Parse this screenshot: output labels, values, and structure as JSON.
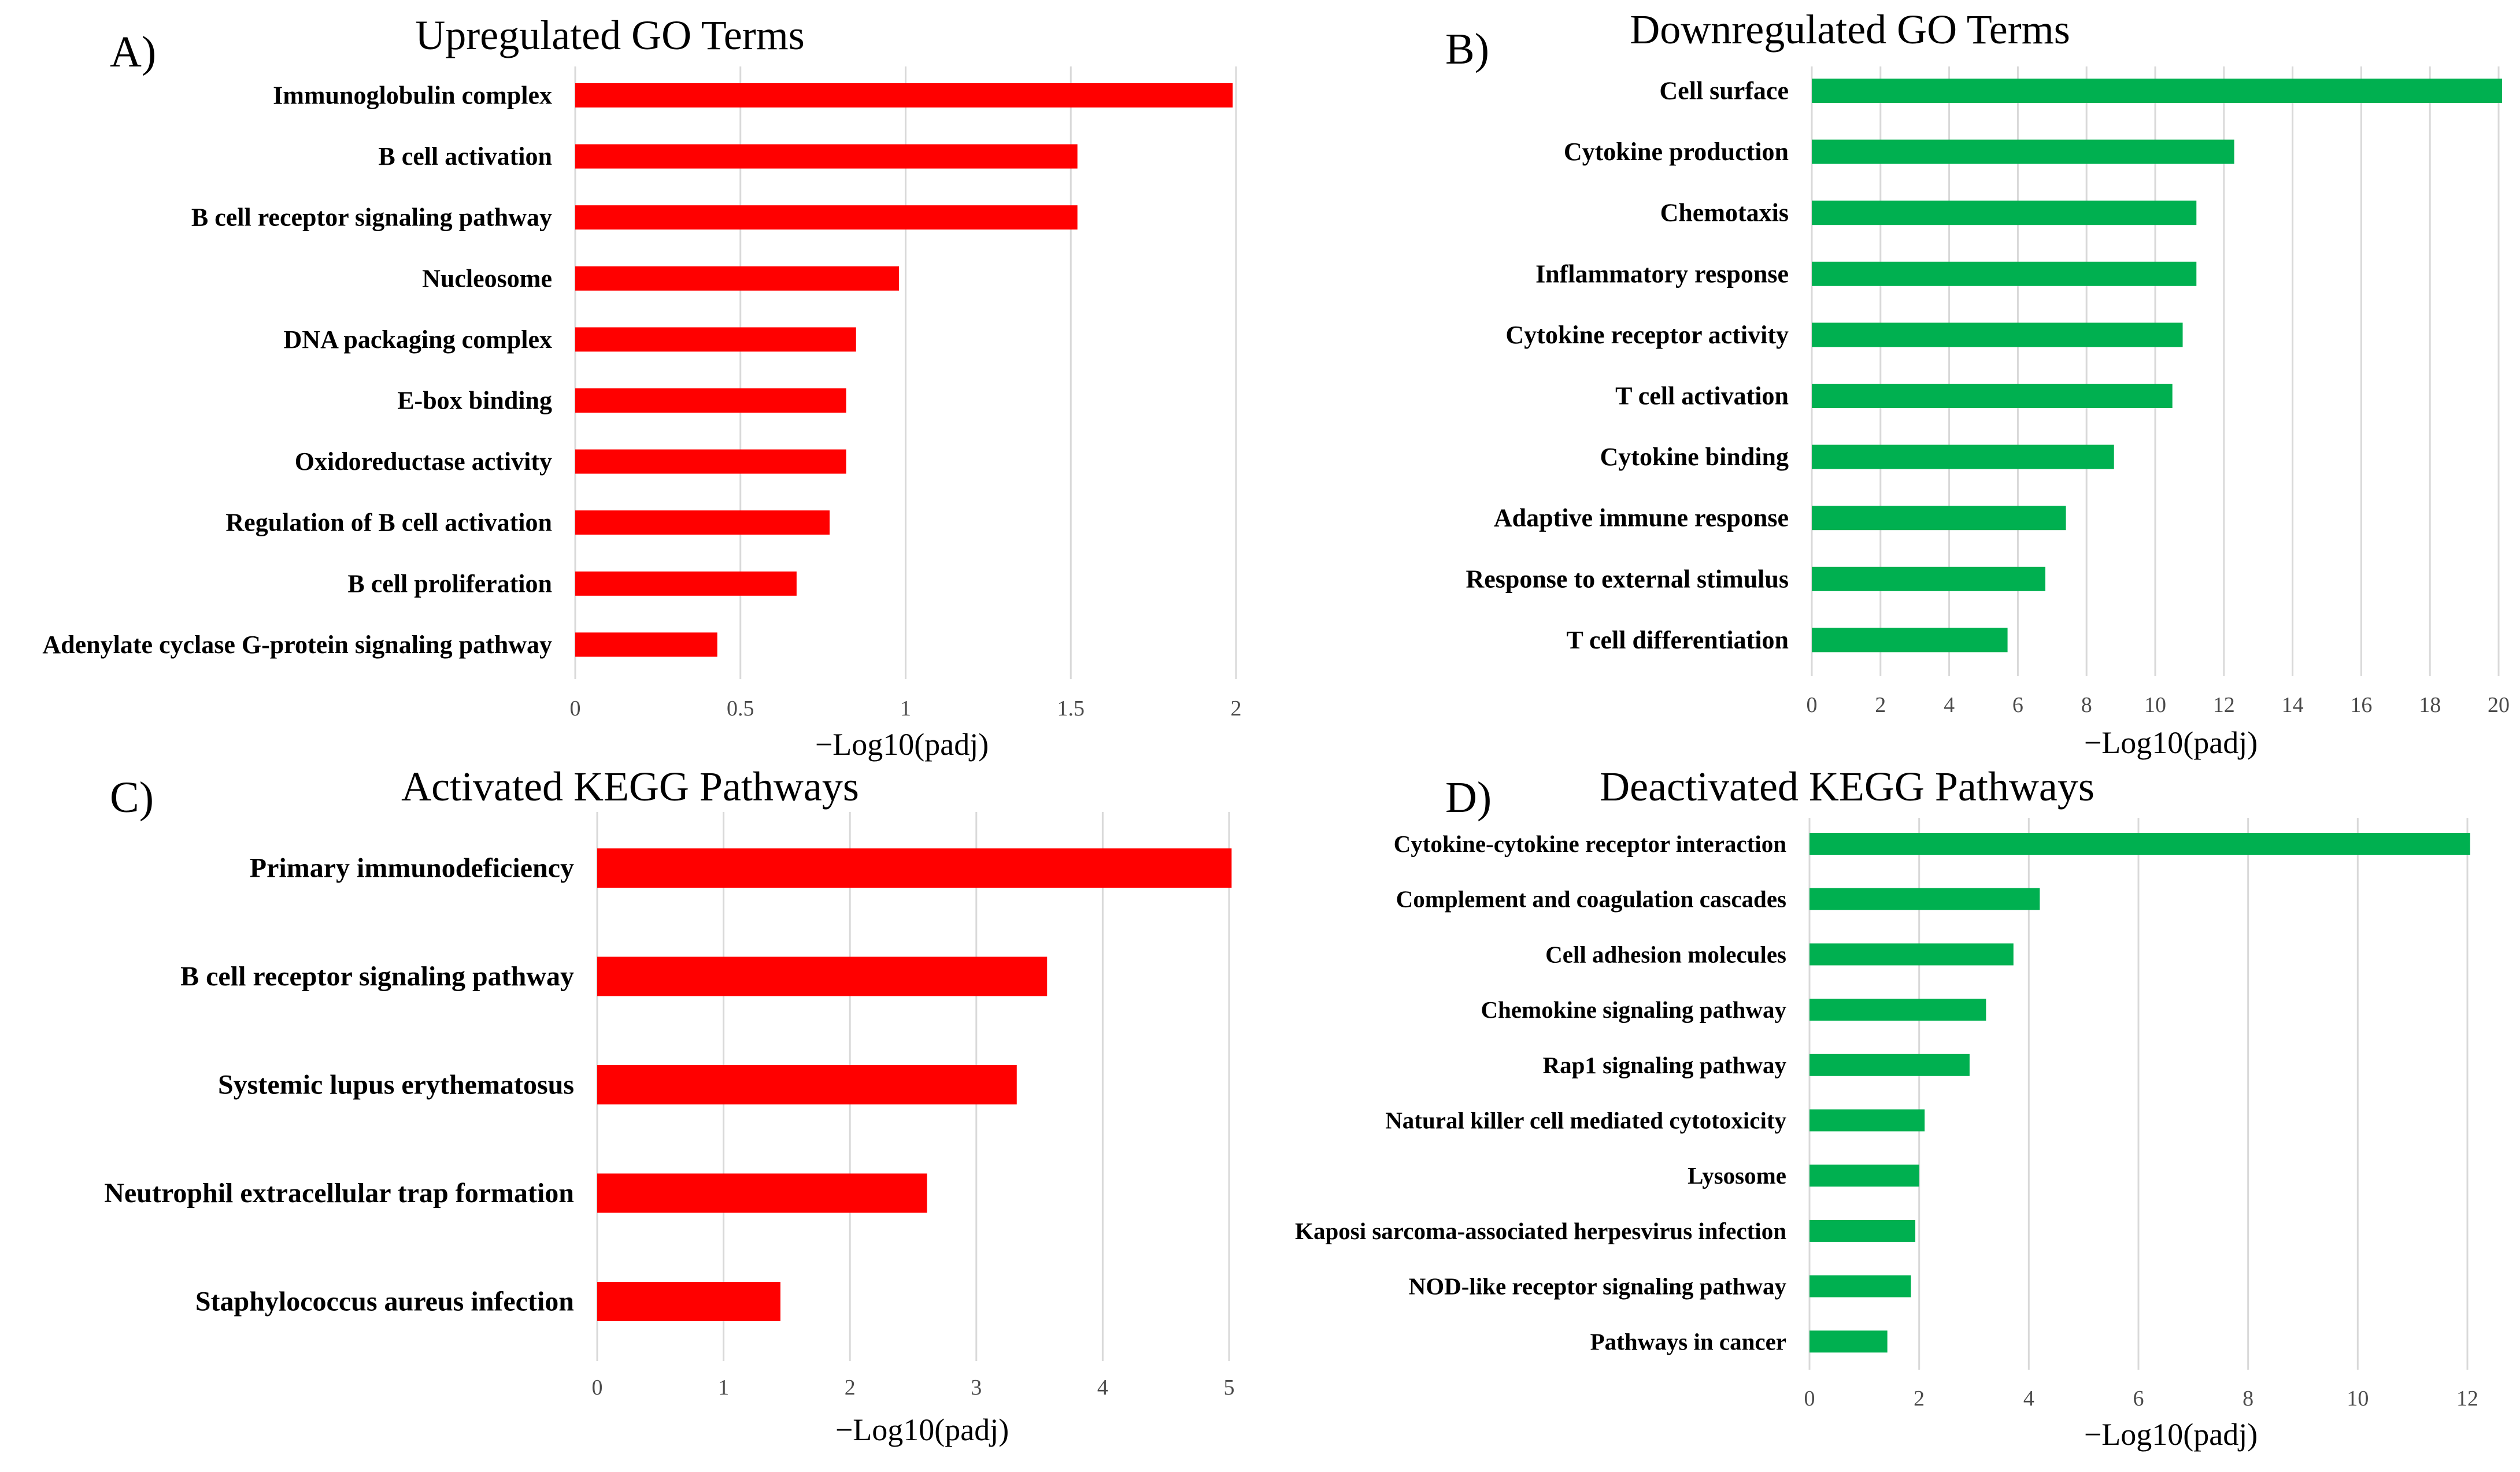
{
  "chart_data": [
    {
      "type": "bar",
      "orientation": "horizontal",
      "panel_label": "A)",
      "title": "Upregulated GO Terms",
      "xlabel": "−Log10(padj)",
      "ylabel": "",
      "xlim": [
        0,
        2
      ],
      "ticks": [
        0,
        0.5,
        1,
        1.5,
        2
      ],
      "tick_labels": [
        "0",
        "0.5",
        "1",
        "1.5",
        "2"
      ],
      "grid": true,
      "color": "#ff0000",
      "categories": [
        "Immunoglobulin complex",
        "B cell activation",
        "B cell receptor signaling pathway",
        "Nucleosome",
        "DNA packaging complex",
        "E-box binding",
        "Oxidoreductase activity",
        "Regulation of B cell activation",
        "B cell proliferation",
        "Adenylate cyclase G-protein signaling pathway"
      ],
      "values": [
        1.99,
        1.52,
        1.52,
        0.98,
        0.85,
        0.82,
        0.82,
        0.77,
        0.67,
        0.43
      ]
    },
    {
      "type": "bar",
      "orientation": "horizontal",
      "panel_label": "B)",
      "title": "Downregulated GO Terms",
      "xlabel": "−Log10(padj)",
      "ylabel": "",
      "xlim": [
        0,
        20
      ],
      "ticks": [
        0,
        2,
        4,
        6,
        8,
        10,
        12,
        14,
        16,
        18,
        20
      ],
      "tick_labels": [
        "0",
        "2",
        "4",
        "6",
        "8",
        "10",
        "12",
        "14",
        "16",
        "18",
        "20"
      ],
      "grid": true,
      "color": "#00b050",
      "categories": [
        "Cell surface",
        "Cytokine production",
        "Chemotaxis",
        "Inflammatory response",
        "Cytokine receptor activity",
        "T cell activation",
        "Cytokine binding",
        "Adaptive immune response",
        "Response to external stimulus",
        "T cell differentiation"
      ],
      "values": [
        20.1,
        12.3,
        11.2,
        11.2,
        10.8,
        10.5,
        8.8,
        7.4,
        6.8,
        5.7
      ]
    },
    {
      "type": "bar",
      "orientation": "horizontal",
      "panel_label": "C)",
      "title": "Activated KEGG Pathways",
      "xlabel": "−Log10(padj)",
      "ylabel": "",
      "xlim": [
        0,
        5
      ],
      "ticks": [
        0,
        1,
        2,
        3,
        4,
        5
      ],
      "tick_labels": [
        "0",
        "1",
        "2",
        "3",
        "4",
        "5"
      ],
      "grid": true,
      "color": "#ff0000",
      "categories": [
        "Primary immunodeficiency",
        "B cell receptor signaling pathway",
        "Systemic lupus erythematosus",
        "Neutrophil extracellular trap formation",
        "Staphylococcus aureus infection"
      ],
      "values": [
        5.02,
        3.56,
        3.32,
        2.61,
        1.45
      ]
    },
    {
      "type": "bar",
      "orientation": "horizontal",
      "panel_label": "D)",
      "title": "Deactivated KEGG Pathways",
      "xlabel": "−Log10(padj)",
      "ylabel": "",
      "xlim": [
        0,
        12
      ],
      "ticks": [
        0,
        2,
        4,
        6,
        8,
        10,
        12
      ],
      "tick_labels": [
        "0",
        "2",
        "4",
        "6",
        "8",
        "10",
        "12"
      ],
      "grid": true,
      "color": "#00b050",
      "categories": [
        "Cytokine-cytokine receptor interaction",
        "Complement and coagulation cascades",
        "Cell adhesion molecules",
        "Chemokine signaling pathway",
        "Rap1 signaling pathway",
        "Natural killer cell mediated cytotoxicity",
        "Lysosome",
        "Kaposi sarcoma-associated herpesvirus infection",
        "NOD-like receptor signaling pathway",
        "Pathways in cancer"
      ],
      "values": [
        12.05,
        4.2,
        3.72,
        3.22,
        2.92,
        2.1,
        2.0,
        1.93,
        1.85,
        1.42
      ]
    }
  ]
}
